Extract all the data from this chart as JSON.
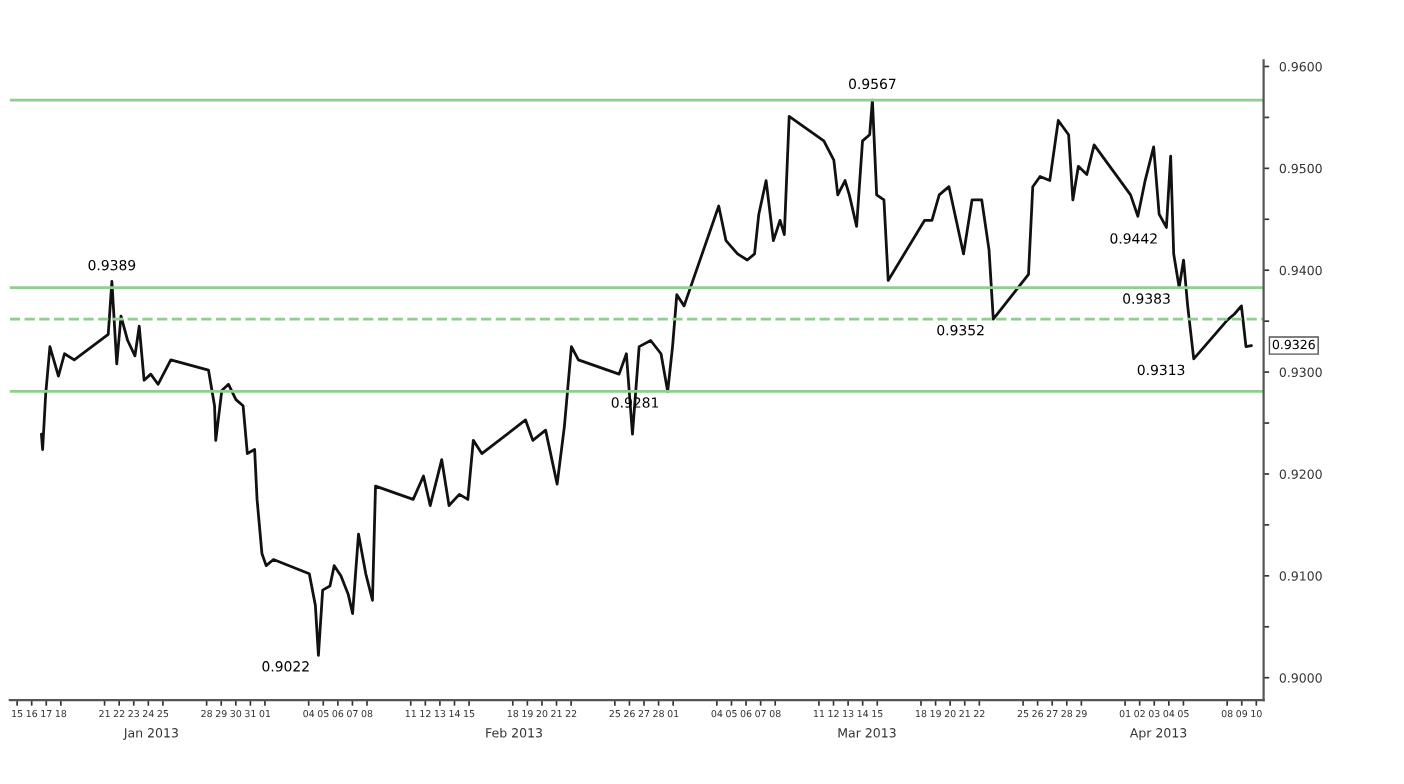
{
  "chart_data": {
    "type": "line",
    "x": [
      "2013-01-16T16:00",
      "2013-01-16T18:00",
      "2013-01-16T23:00",
      "2013-01-17T06:00",
      "2013-01-17T20:00",
      "2013-01-18T06:00",
      "2013-01-18T22:00",
      "2013-01-21T06:00",
      "2013-01-21T12:00",
      "2013-01-21T20:00",
      "2013-01-22T03:00",
      "2013-01-22T14:00",
      "2013-01-23T02:00",
      "2013-01-23T09:00",
      "2013-01-23T17:00",
      "2013-01-24T04:00",
      "2013-01-24T16:00",
      "2013-01-25T13:00",
      "2013-01-28T03:00",
      "2013-01-28T13:00",
      "2013-01-28T15:00",
      "2013-01-29T01:00",
      "2013-01-29T12:00",
      "2013-01-30T00:15",
      "2013-01-30T12:00",
      "2013-01-30T19:00",
      "2013-01-31T07:00",
      "2013-01-31T11:00",
      "2013-01-31T19:00",
      "2013-02-01T02:00",
      "2013-02-01T14:00",
      "2013-02-04T01:00",
      "2013-02-04T11:00",
      "2013-02-04T16:00",
      "2013-02-04T23:00",
      "2013-02-05T11:00",
      "2013-02-05T18:00",
      "2013-02-06T05:00",
      "2013-02-06T17:00",
      "2013-02-07T00:15",
      "2013-02-07T10:00",
      "2013-02-07T22:00",
      "2013-02-08T09:00",
      "2013-02-08T14:00",
      "2013-02-11T04:00",
      "2013-02-11T21:00",
      "2013-02-12T08:00",
      "2013-02-13T03:00",
      "2013-02-13T15:00",
      "2013-02-14T08:00",
      "2013-02-14T22:00",
      "2013-02-15T07:00",
      "2013-02-15T21:00",
      "2013-02-18T21:00",
      "2013-02-19T09:00",
      "2013-02-20T06:00",
      "2013-02-21T01:00",
      "2013-02-21T13:00",
      "2013-02-22T00:30",
      "2013-02-22T12:00",
      "2013-02-25T07:00",
      "2013-02-25T19:00",
      "2013-02-26T05:00",
      "2013-02-26T16:00",
      "2013-02-27T11:00",
      "2013-02-28T04:00",
      "2013-02-28T15:00",
      "2013-02-28T23:00",
      "2013-03-01T06:00",
      "2013-03-01T18:00",
      "2013-03-04T03:00",
      "2013-03-04T15:00",
      "2013-03-05T10:00",
      "2013-03-06T02:00",
      "2013-03-06T14:00",
      "2013-03-06T21:00",
      "2013-03-07T09:00",
      "2013-03-07T21:00",
      "2013-03-08T08:00",
      "2013-03-08T15:00",
      "2013-03-08T23:00",
      "2013-03-11T08:00",
      "2013-03-12T00:30",
      "2013-03-12T07:00",
      "2013-03-12T19:00",
      "2013-03-13T02:00",
      "2013-03-13T14:00",
      "2013-03-13T23:45",
      "2013-03-14T11:30",
      "2013-03-14T16:00",
      "2013-03-14T23:00",
      "2013-03-15T11:00",
      "2013-03-15T18:00",
      "2013-03-18T06:00",
      "2013-03-18T18:00",
      "2013-03-19T06:00",
      "2013-03-19T22:00",
      "2013-03-20T10:00",
      "2013-03-20T22:00",
      "2013-03-21T12:00",
      "2013-03-22T04:00",
      "2013-03-22T16:00",
      "2013-03-22T23:00",
      "2013-03-25T09:00",
      "2013-03-25T16:00",
      "2013-03-26T04:00",
      "2013-03-26T20:00",
      "2013-03-27T10:00",
      "2013-03-28T03:00",
      "2013-03-28T10:00",
      "2013-03-28T19:00",
      "2013-03-29T09:00",
      "2013-03-29T21:00",
      "2013-04-01T09:00",
      "2013-04-01T21:00",
      "2013-04-02T09:00",
      "2013-04-02T23:00",
      "2013-04-03T08:00",
      "2013-04-03T20:00",
      "2013-04-04T03:00",
      "2013-04-04T08:00",
      "2013-04-04T17:00",
      "2013-04-05T00:15",
      "2013-04-05T07:00",
      "2013-04-05T17:00",
      "2013-04-08T00:15",
      "2013-04-08T12:00",
      "2013-04-08T23:30",
      "2013-04-09T07:00",
      "2013-04-09T16:00"
    ],
    "series": [
      {
        "color": "#111111",
        "values": [
          0.9239,
          0.9224,
          0.9278,
          0.9325,
          0.9296,
          0.9318,
          0.9312,
          0.9337,
          0.9389,
          0.9308,
          0.9355,
          0.9331,
          0.9316,
          0.9345,
          0.9292,
          0.9298,
          0.9288,
          0.9312,
          0.9302,
          0.9267,
          0.9233,
          0.9282,
          0.9288,
          0.9273,
          0.9267,
          0.922,
          0.9224,
          0.9175,
          0.9122,
          0.911,
          0.9116,
          0.9102,
          0.9071,
          0.9022,
          0.9086,
          0.909,
          0.911,
          0.91,
          0.9082,
          0.9063,
          0.9141,
          0.9102,
          0.9076,
          0.9188,
          0.9175,
          0.9198,
          0.9169,
          0.9214,
          0.9169,
          0.918,
          0.9175,
          0.9233,
          0.922,
          0.9253,
          0.9233,
          0.9243,
          0.919,
          0.9247,
          0.9325,
          0.9312,
          0.9298,
          0.9318,
          0.9239,
          0.9325,
          0.9331,
          0.9318,
          0.9281,
          0.9325,
          0.9376,
          0.9365,
          0.9463,
          0.9429,
          0.9416,
          0.941,
          0.9416,
          0.9455,
          0.9488,
          0.9429,
          0.9449,
          0.9435,
          0.9551,
          0.9527,
          0.9508,
          0.9474,
          0.9488,
          0.9474,
          0.9443,
          0.9527,
          0.9533,
          0.9567,
          0.9474,
          0.9469,
          0.939,
          0.9449,
          0.9449,
          0.9474,
          0.9482,
          0.9449,
          0.9416,
          0.9469,
          0.9469,
          0.942,
          0.9352,
          0.9396,
          0.9482,
          0.9492,
          0.9488,
          0.9547,
          0.9533,
          0.9469,
          0.9502,
          0.9494,
          0.9523,
          0.9474,
          0.9453,
          0.9488,
          0.9521,
          0.9455,
          0.9442,
          0.9512,
          0.9416,
          0.9383,
          0.941,
          0.9365,
          0.9313,
          0.9351,
          0.9357,
          0.9365,
          0.9325,
          0.9326
        ]
      }
    ],
    "xlim": [
      "2013-01-14T12:00",
      "2013-04-10T12:00"
    ],
    "xticks": [
      {
        "value": "2013-01-15",
        "label": "15"
      },
      {
        "value": "2013-01-16",
        "label": "16"
      },
      {
        "value": "2013-01-17",
        "label": "17"
      },
      {
        "value": "2013-01-18",
        "label": "18"
      },
      {
        "value": "2013-01-21",
        "label": "21"
      },
      {
        "value": "2013-01-22",
        "label": "22"
      },
      {
        "value": "2013-01-23",
        "label": "23"
      },
      {
        "value": "2013-01-24",
        "label": "24"
      },
      {
        "value": "2013-01-25",
        "label": "25"
      },
      {
        "value": "2013-01-28",
        "label": "28"
      },
      {
        "value": "2013-01-29",
        "label": "29"
      },
      {
        "value": "2013-01-30",
        "label": "30"
      },
      {
        "value": "2013-01-31",
        "label": "31"
      },
      {
        "value": "2013-02-01",
        "label": "01"
      },
      {
        "value": "2013-02-04",
        "label": "04"
      },
      {
        "value": "2013-02-05",
        "label": "05"
      },
      {
        "value": "2013-02-06",
        "label": "06"
      },
      {
        "value": "2013-02-07",
        "label": "07"
      },
      {
        "value": "2013-02-08",
        "label": "08"
      },
      {
        "value": "2013-02-11",
        "label": "11"
      },
      {
        "value": "2013-02-12",
        "label": "12"
      },
      {
        "value": "2013-02-13",
        "label": "13"
      },
      {
        "value": "2013-02-14",
        "label": "14"
      },
      {
        "value": "2013-02-15",
        "label": "15"
      },
      {
        "value": "2013-02-18",
        "label": "18"
      },
      {
        "value": "2013-02-19",
        "label": "19"
      },
      {
        "value": "2013-02-20",
        "label": "20"
      },
      {
        "value": "2013-02-21",
        "label": "21"
      },
      {
        "value": "2013-02-22",
        "label": "22"
      },
      {
        "value": "2013-02-25",
        "label": "25"
      },
      {
        "value": "2013-02-26",
        "label": "26"
      },
      {
        "value": "2013-02-27",
        "label": "27"
      },
      {
        "value": "2013-02-28",
        "label": "28"
      },
      {
        "value": "2013-03-01",
        "label": "01"
      },
      {
        "value": "2013-03-04",
        "label": "04"
      },
      {
        "value": "2013-03-05",
        "label": "05"
      },
      {
        "value": "2013-03-06",
        "label": "06"
      },
      {
        "value": "2013-03-07",
        "label": "07"
      },
      {
        "value": "2013-03-08",
        "label": "08"
      },
      {
        "value": "2013-03-11",
        "label": "11"
      },
      {
        "value": "2013-03-12",
        "label": "12"
      },
      {
        "value": "2013-03-13",
        "label": "13"
      },
      {
        "value": "2013-03-14",
        "label": "14"
      },
      {
        "value": "2013-03-15",
        "label": "15"
      },
      {
        "value": "2013-03-18",
        "label": "18"
      },
      {
        "value": "2013-03-19",
        "label": "19"
      },
      {
        "value": "2013-03-20",
        "label": "20"
      },
      {
        "value": "2013-03-21",
        "label": "21"
      },
      {
        "value": "2013-03-22",
        "label": "22"
      },
      {
        "value": "2013-03-25",
        "label": "25"
      },
      {
        "value": "2013-03-26",
        "label": "26"
      },
      {
        "value": "2013-03-27",
        "label": "27"
      },
      {
        "value": "2013-03-28",
        "label": "28"
      },
      {
        "value": "2013-03-29",
        "label": "29"
      },
      {
        "value": "2013-04-01",
        "label": "01"
      },
      {
        "value": "2013-04-02",
        "label": "02"
      },
      {
        "value": "2013-04-03",
        "label": "03"
      },
      {
        "value": "2013-04-04",
        "label": "04"
      },
      {
        "value": "2013-04-05",
        "label": "05"
      },
      {
        "value": "2013-04-08",
        "label": "08"
      },
      {
        "value": "2013-04-09",
        "label": "09"
      },
      {
        "value": "2013-04-10",
        "label": "10"
      }
    ],
    "x2lim": [
      "2013-01-14T12:00",
      "2013-04-10T12:00"
    ],
    "x2ticks": [
      {
        "value": "2013-01-24T05:00",
        "label": "Jan 2013"
      },
      {
        "value": "2013-02-18T02:00",
        "label": "Feb 2013"
      },
      {
        "value": "2013-03-14T07:00",
        "label": "Mar 2013"
      },
      {
        "value": "2013-04-03T07:00",
        "label": "Apr 2013"
      }
    ],
    "ylim": [
      0.8978,
      0.9606
    ],
    "yticks": [
      {
        "value": 0.9,
        "label": "0.9000"
      },
      {
        "value": 0.905,
        "label": null
      },
      {
        "value": 0.91,
        "label": "0.9100"
      },
      {
        "value": 0.915,
        "label": null
      },
      {
        "value": 0.92,
        "label": "0.9200"
      },
      {
        "value": 0.925,
        "label": null
      },
      {
        "value": 0.93,
        "label": "0.9300"
      },
      {
        "value": 0.935,
        "label": null
      },
      {
        "value": 0.94,
        "label": "0.9400"
      },
      {
        "value": 0.945,
        "label": null
      },
      {
        "value": 0.95,
        "label": "0.9500"
      },
      {
        "value": 0.955,
        "label": null
      },
      {
        "value": 0.96,
        "label": "0.9600"
      }
    ],
    "ref_lines": [
      {
        "axis": "y",
        "value": 0.9567,
        "color": "#8fce8f",
        "line_style": "solid"
      },
      {
        "axis": "y",
        "value": 0.9383,
        "color": "#8fce8f",
        "line_style": "solid"
      },
      {
        "axis": "y",
        "value": 0.9352,
        "color": "#8fce8f",
        "line_style": "dashed"
      },
      {
        "axis": "y",
        "value": 0.9281,
        "color": "#8fce8f",
        "line_style": "solid"
      }
    ],
    "annotations": [
      {
        "text": "0.9389",
        "x": "2013-01-21T12:00",
        "y": 0.9389
      },
      {
        "text": "0.9022",
        "x": "2013-02-04T16:00",
        "y": 0.9022
      },
      {
        "text": "0.9281",
        "x": "2013-02-28T15:00",
        "y": 0.9281
      },
      {
        "text": "0.9567",
        "x": "2013-03-14T16:00",
        "y": 0.9567
      },
      {
        "text": "0.9352",
        "x": "2013-03-22T23:00",
        "y": 0.9352
      },
      {
        "text": "0.9442",
        "x": "2013-04-03T20:00",
        "y": 0.9442
      },
      {
        "text": "0.9383",
        "x": "2013-04-04T17:00",
        "y": 0.9383
      },
      {
        "text": "0.9313",
        "x": "2013-04-05T17:00",
        "y": 0.9313
      },
      {
        "text": "0.9326",
        "x": "2013-04-09T16:00",
        "y": 0.9326
      }
    ],
    "grid": false,
    "legend": false,
    "marker": "none",
    "line_style": "solid"
  }
}
